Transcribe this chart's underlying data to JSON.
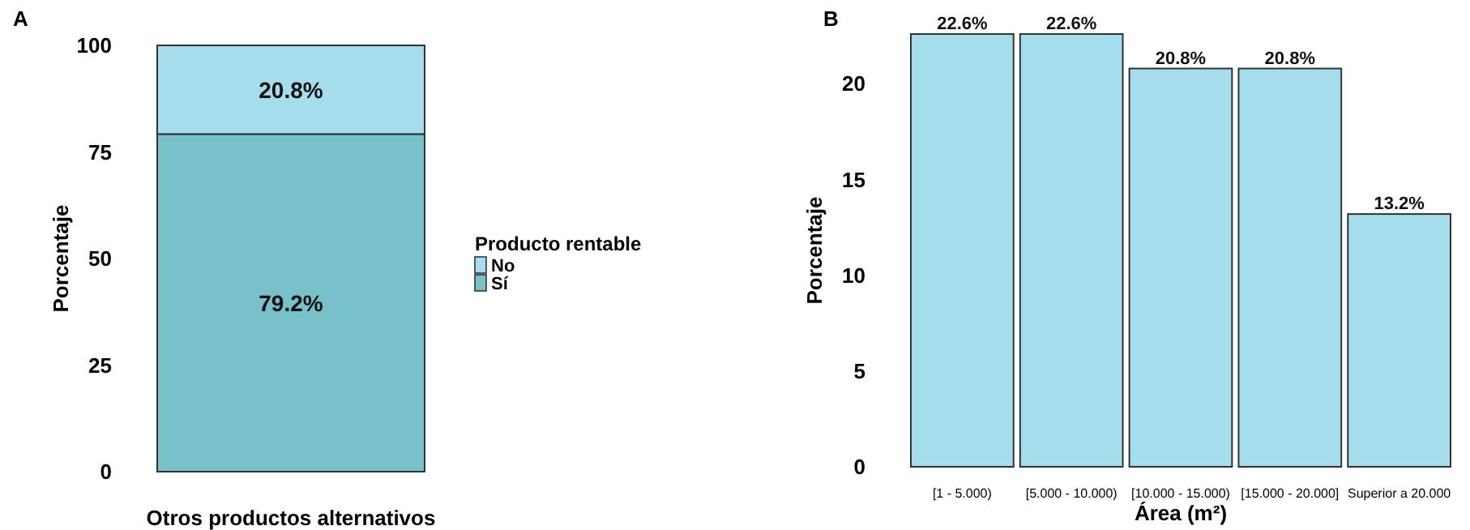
{
  "chart_data": [
    {
      "type": "bar",
      "title": "A",
      "ylabel": "Porcentaje",
      "categories": [
        "Otros productos alternativos"
      ],
      "stacked": true,
      "legend_title": "Producto rentable",
      "legend": "right",
      "ylim": [
        0,
        100
      ],
      "yticks": [
        0,
        25,
        50,
        75,
        100
      ],
      "series": [
        {
          "name": "Sí",
          "color": "#78c1c8",
          "values": [
            79.2
          ],
          "value_labels": [
            "79.2%"
          ]
        },
        {
          "name": "No",
          "color": "#a6dded",
          "values": [
            20.8
          ],
          "value_labels": [
            "20.8%"
          ]
        }
      ]
    },
    {
      "type": "bar",
      "title": "B",
      "xlabel": "Área (m²)",
      "ylabel": "Porcentaje",
      "categories": [
        "[1 - 5.000)",
        "[5.000 - 10.000)",
        "[10.000 - 15.000)",
        "[15.000 - 20.000]",
        "Superior a 20.000"
      ],
      "ylim": [
        0,
        22.6
      ],
      "yticks": [
        0,
        5,
        10,
        15,
        20
      ],
      "series": [
        {
          "color": "#a6dded",
          "values": [
            22.6,
            22.6,
            20.8,
            20.8,
            13.2
          ],
          "value_labels": [
            "22.6%",
            "22.6%",
            "20.8%",
            "20.8%",
            "13.2%"
          ]
        }
      ]
    }
  ]
}
